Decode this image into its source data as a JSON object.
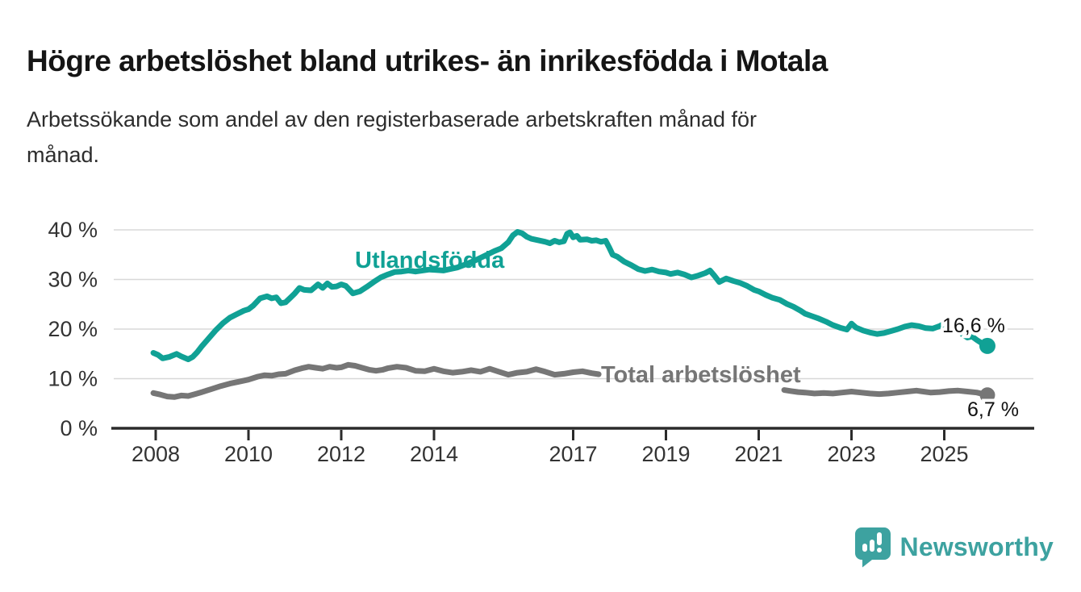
{
  "header": {
    "title": "Högre arbetslöshet bland utrikes- än inrikesfödda i Motala",
    "subtitle": "Arbetssökande som andel av den registerbaserade arbetskraften månad för månad.",
    "subtitle_lines": [
      "Arbetssökande som andel av den registerbaserade arbetskraften månad för",
      "månad."
    ]
  },
  "footer": {
    "brand": "Newsworthy",
    "logo_icon": "bar-chart-speech-bubble"
  },
  "colors": {
    "accent_teal": "#10a195",
    "series_gray": "#767676",
    "axis": "#2b2b2b",
    "grid": "#d8d8d8",
    "tick_text": "#333333",
    "value_text": "#111111",
    "logo_teal": "#3da2a0"
  },
  "chart_data": {
    "type": "line",
    "title": "Högre arbetslöshet bland utrikes- än inrikesfödda i Motala",
    "subtitle": "Arbetssökande som andel av den registerbaserade arbetskraften månad för månad.",
    "unit": "%",
    "grid": "horizontal",
    "legend_position": "inline-labels",
    "x_axis": {
      "ticks": [
        2008,
        2010,
        2012,
        2014,
        2017,
        2019,
        2021,
        2023,
        2025
      ],
      "tick_labels": [
        "2008",
        "2010",
        "2012",
        "2014",
        "2017",
        "2019",
        "2021",
        "2023",
        "2025"
      ],
      "range": [
        2007.1,
        2026.9
      ]
    },
    "y_axis": {
      "ticks": [
        0,
        10,
        20,
        30,
        40
      ],
      "tick_labels": [
        "0 %",
        "10 %",
        "20 %",
        "30 %",
        "40 %"
      ],
      "range": [
        0,
        42
      ]
    },
    "series": [
      {
        "name": "Utlandsfödda",
        "color": "#10a195",
        "end_value": 16.6,
        "end_label": "16,6 %",
        "segments": [
          [
            [
              2007.95,
              15.2
            ],
            [
              2008.05,
              14.8
            ],
            [
              2008.15,
              14.1
            ],
            [
              2008.3,
              14.4
            ],
            [
              2008.45,
              15.0
            ],
            [
              2008.55,
              14.5
            ],
            [
              2008.7,
              13.9
            ],
            [
              2008.8,
              14.4
            ],
            [
              2008.9,
              15.4
            ],
            [
              2009.0,
              16.6
            ],
            [
              2009.15,
              18.2
            ],
            [
              2009.3,
              19.8
            ],
            [
              2009.45,
              21.2
            ],
            [
              2009.6,
              22.3
            ],
            [
              2009.75,
              23.0
            ],
            [
              2009.9,
              23.7
            ],
            [
              2010.0,
              24.0
            ],
            [
              2010.1,
              24.7
            ],
            [
              2010.25,
              26.2
            ],
            [
              2010.4,
              26.6
            ],
            [
              2010.5,
              26.2
            ],
            [
              2010.6,
              26.4
            ],
            [
              2010.7,
              25.2
            ],
            [
              2010.8,
              25.4
            ],
            [
              2010.9,
              26.3
            ],
            [
              2011.0,
              27.2
            ],
            [
              2011.1,
              28.3
            ],
            [
              2011.2,
              27.9
            ],
            [
              2011.35,
              27.8
            ],
            [
              2011.5,
              29.0
            ],
            [
              2011.6,
              28.3
            ],
            [
              2011.7,
              29.2
            ],
            [
              2011.8,
              28.5
            ],
            [
              2011.9,
              28.6
            ],
            [
              2012.0,
              29.0
            ],
            [
              2012.1,
              28.7
            ],
            [
              2012.25,
              27.2
            ],
            [
              2012.4,
              27.6
            ],
            [
              2012.55,
              28.5
            ],
            [
              2012.7,
              29.5
            ],
            [
              2012.85,
              30.4
            ],
            [
              2013.0,
              31.0
            ],
            [
              2013.15,
              31.5
            ],
            [
              2013.3,
              31.6
            ],
            [
              2013.45,
              31.8
            ],
            [
              2013.6,
              31.6
            ],
            [
              2013.75,
              31.8
            ],
            [
              2013.9,
              32.0
            ],
            [
              2014.05,
              31.9
            ],
            [
              2014.2,
              31.8
            ],
            [
              2014.35,
              32.1
            ],
            [
              2014.5,
              32.4
            ],
            [
              2014.7,
              33.1
            ],
            [
              2014.9,
              33.9
            ],
            [
              2015.1,
              34.8
            ],
            [
              2015.3,
              35.7
            ],
            [
              2015.45,
              36.3
            ],
            [
              2015.6,
              37.5
            ],
            [
              2015.7,
              38.9
            ],
            [
              2015.8,
              39.6
            ],
            [
              2015.9,
              39.3
            ],
            [
              2016.0,
              38.6
            ],
            [
              2016.1,
              38.2
            ],
            [
              2016.25,
              37.9
            ],
            [
              2016.4,
              37.6
            ],
            [
              2016.5,
              37.3
            ],
            [
              2016.6,
              37.8
            ],
            [
              2016.7,
              37.5
            ],
            [
              2016.8,
              37.7
            ],
            [
              2016.87,
              39.2
            ],
            [
              2016.93,
              39.5
            ],
            [
              2017.0,
              38.5
            ],
            [
              2017.08,
              38.8
            ],
            [
              2017.15,
              38.0
            ],
            [
              2017.3,
              38.1
            ],
            [
              2017.4,
              37.8
            ],
            [
              2017.5,
              37.9
            ],
            [
              2017.6,
              37.6
            ],
            [
              2017.7,
              37.8
            ],
            [
              2017.78,
              36.4
            ],
            [
              2017.85,
              35.0
            ],
            [
              2017.95,
              34.6
            ],
            [
              2018.1,
              33.6
            ],
            [
              2018.25,
              32.9
            ],
            [
              2018.4,
              32.1
            ],
            [
              2018.55,
              31.7
            ],
            [
              2018.7,
              32.0
            ],
            [
              2018.85,
              31.6
            ],
            [
              2019.0,
              31.4
            ],
            [
              2019.1,
              31.1
            ],
            [
              2019.25,
              31.4
            ],
            [
              2019.4,
              31.0
            ],
            [
              2019.55,
              30.4
            ],
            [
              2019.7,
              30.8
            ],
            [
              2019.85,
              31.3
            ],
            [
              2019.95,
              31.8
            ],
            [
              2020.05,
              30.7
            ],
            [
              2020.15,
              29.5
            ],
            [
              2020.3,
              30.2
            ],
            [
              2020.45,
              29.7
            ],
            [
              2020.6,
              29.3
            ],
            [
              2020.75,
              28.7
            ],
            [
              2020.9,
              27.9
            ],
            [
              2021.0,
              27.6
            ],
            [
              2021.15,
              26.9
            ],
            [
              2021.3,
              26.3
            ],
            [
              2021.45,
              25.9
            ],
            [
              2021.6,
              25.1
            ],
            [
              2021.75,
              24.5
            ],
            [
              2021.9,
              23.7
            ],
            [
              2022.0,
              23.1
            ],
            [
              2022.15,
              22.6
            ],
            [
              2022.3,
              22.1
            ],
            [
              2022.45,
              21.5
            ],
            [
              2022.6,
              20.8
            ],
            [
              2022.75,
              20.3
            ],
            [
              2022.9,
              19.9
            ],
            [
              2023.0,
              21.1
            ],
            [
              2023.1,
              20.3
            ],
            [
              2023.25,
              19.7
            ],
            [
              2023.4,
              19.3
            ],
            [
              2023.55,
              19.0
            ],
            [
              2023.7,
              19.2
            ],
            [
              2023.85,
              19.6
            ],
            [
              2024.0,
              20.0
            ],
            [
              2024.15,
              20.5
            ],
            [
              2024.3,
              20.8
            ],
            [
              2024.45,
              20.6
            ],
            [
              2024.6,
              20.2
            ],
            [
              2024.75,
              20.1
            ],
            [
              2024.9,
              20.6
            ],
            [
              2025.0,
              21.1
            ],
            [
              2025.1,
              20.9
            ],
            [
              2025.25,
              20.2
            ],
            [
              2025.4,
              18.9
            ],
            [
              2025.5,
              18.3
            ],
            [
              2025.6,
              18.5
            ],
            [
              2025.7,
              17.8
            ],
            [
              2025.8,
              17.2
            ],
            [
              2025.93,
              16.6
            ]
          ]
        ]
      },
      {
        "name": "Total arbetslöshet",
        "color": "#767676",
        "end_value": 6.7,
        "end_label": "6,7 %",
        "segments": [
          [
            [
              2007.95,
              7.1
            ],
            [
              2008.1,
              6.8
            ],
            [
              2008.25,
              6.4
            ],
            [
              2008.4,
              6.3
            ],
            [
              2008.55,
              6.6
            ],
            [
              2008.7,
              6.5
            ],
            [
              2008.85,
              6.9
            ],
            [
              2009.0,
              7.3
            ],
            [
              2009.2,
              7.9
            ],
            [
              2009.4,
              8.5
            ],
            [
              2009.6,
              9.0
            ],
            [
              2009.8,
              9.4
            ],
            [
              2010.0,
              9.8
            ],
            [
              2010.2,
              10.4
            ],
            [
              2010.35,
              10.7
            ],
            [
              2010.5,
              10.6
            ],
            [
              2010.65,
              10.9
            ],
            [
              2010.8,
              11.0
            ],
            [
              2011.0,
              11.7
            ],
            [
              2011.15,
              12.1
            ],
            [
              2011.3,
              12.4
            ],
            [
              2011.45,
              12.2
            ],
            [
              2011.6,
              12.0
            ],
            [
              2011.75,
              12.4
            ],
            [
              2011.9,
              12.2
            ],
            [
              2012.0,
              12.3
            ],
            [
              2012.15,
              12.8
            ],
            [
              2012.3,
              12.6
            ],
            [
              2012.45,
              12.2
            ],
            [
              2012.6,
              11.8
            ],
            [
              2012.75,
              11.6
            ],
            [
              2012.9,
              11.8
            ],
            [
              2013.0,
              12.1
            ],
            [
              2013.2,
              12.4
            ],
            [
              2013.4,
              12.2
            ],
            [
              2013.6,
              11.6
            ],
            [
              2013.8,
              11.5
            ],
            [
              2014.0,
              12.0
            ],
            [
              2014.2,
              11.5
            ],
            [
              2014.4,
              11.2
            ],
            [
              2014.6,
              11.4
            ],
            [
              2014.8,
              11.7
            ],
            [
              2015.0,
              11.4
            ],
            [
              2015.2,
              12.0
            ],
            [
              2015.4,
              11.4
            ],
            [
              2015.6,
              10.8
            ],
            [
              2015.8,
              11.2
            ],
            [
              2016.0,
              11.4
            ],
            [
              2016.2,
              11.9
            ],
            [
              2016.4,
              11.4
            ],
            [
              2016.6,
              10.8
            ],
            [
              2016.8,
              11.0
            ],
            [
              2017.0,
              11.3
            ],
            [
              2017.2,
              11.5
            ],
            [
              2017.4,
              11.1
            ],
            [
              2017.55,
              10.9
            ]
          ],
          [
            [
              2021.55,
              7.7
            ],
            [
              2021.7,
              7.5
            ],
            [
              2021.85,
              7.3
            ],
            [
              2022.0,
              7.2
            ],
            [
              2022.2,
              7.0
            ],
            [
              2022.4,
              7.1
            ],
            [
              2022.6,
              7.0
            ],
            [
              2022.8,
              7.2
            ],
            [
              2023.0,
              7.4
            ],
            [
              2023.2,
              7.2
            ],
            [
              2023.4,
              7.0
            ],
            [
              2023.6,
              6.9
            ],
            [
              2023.8,
              7.0
            ],
            [
              2024.0,
              7.2
            ],
            [
              2024.2,
              7.4
            ],
            [
              2024.4,
              7.6
            ],
            [
              2024.55,
              7.4
            ],
            [
              2024.7,
              7.2
            ],
            [
              2024.9,
              7.3
            ],
            [
              2025.1,
              7.5
            ],
            [
              2025.3,
              7.6
            ],
            [
              2025.5,
              7.4
            ],
            [
              2025.7,
              7.2
            ],
            [
              2025.93,
              6.7
            ]
          ]
        ]
      }
    ]
  }
}
